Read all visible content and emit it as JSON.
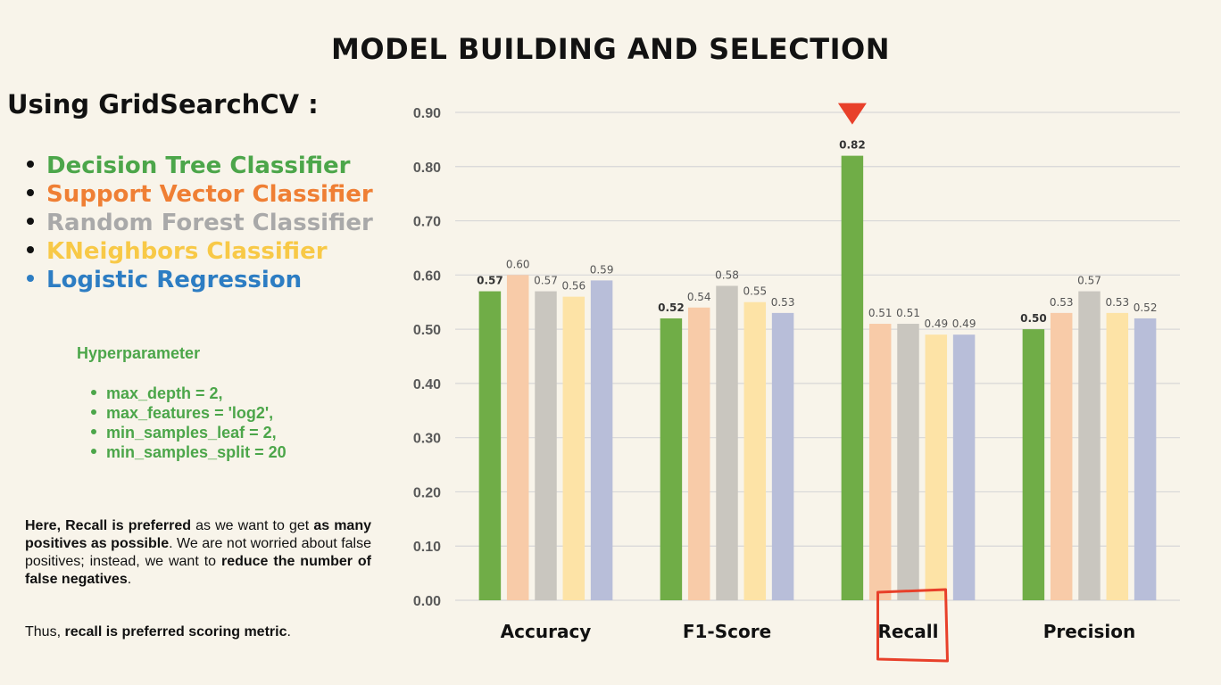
{
  "title": "MODEL BUILDING AND SELECTION",
  "heading": "Using GridSearchCV :",
  "models": [
    {
      "label": "Decision Tree Classifier",
      "color": "#4ca64a"
    },
    {
      "label": "Support Vector Classifier",
      "color": "#ef7f34"
    },
    {
      "label": "Random Forest Classifier",
      "color": "#a9a9a9"
    },
    {
      "label": "KNeighbors Classifier",
      "color": "#f8c947"
    },
    {
      "label": "Logistic Regression",
      "color": "#2d7dc3"
    }
  ],
  "hyperparameter": {
    "title": "Hyperparameter",
    "items": [
      "max_depth = 2,",
      "max_features = 'log2',",
      "min_samples_leaf = 2,",
      "min_samples_split = 20"
    ]
  },
  "note": {
    "p1_b1": "Here, Recall is preferred",
    "p1_t1": " as we want to get ",
    "p1_b2": "as many positives as possible",
    "p1_t2": ". We are not worried about false positives; instead, we want to ",
    "p1_b3": "reduce the number of false negatives",
    "p1_t3": ".",
    "p2_t1": "Thus, ",
    "p2_b1": "recall is preferred scoring metric",
    "p2_t2": "."
  },
  "chart_data": {
    "type": "bar",
    "categories": [
      "Accuracy",
      "F1-Score",
      "Recall",
      "Precision"
    ],
    "series": [
      {
        "values": [
          0.57,
          0.52,
          0.82,
          0.5
        ],
        "color": "#70ad47",
        "bold_labels": true
      },
      {
        "values": [
          0.6,
          0.54,
          0.51,
          0.53
        ],
        "color": "#f8cba8"
      },
      {
        "values": [
          0.57,
          0.58,
          0.51,
          0.57
        ],
        "color": "#c9c6bf"
      },
      {
        "values": [
          0.56,
          0.55,
          0.49,
          0.53
        ],
        "color": "#fde3a6"
      },
      {
        "values": [
          0.59,
          0.53,
          0.49,
          0.52
        ],
        "color": "#b8bed9"
      }
    ],
    "ylim": [
      0,
      0.9
    ],
    "yticks": [
      "0.00",
      "0.10",
      "0.20",
      "0.30",
      "0.40",
      "0.50",
      "0.60",
      "0.70",
      "0.80",
      "0.90"
    ],
    "grid": true,
    "highlight_category": "Recall",
    "highlight_color": "#e8402a"
  }
}
